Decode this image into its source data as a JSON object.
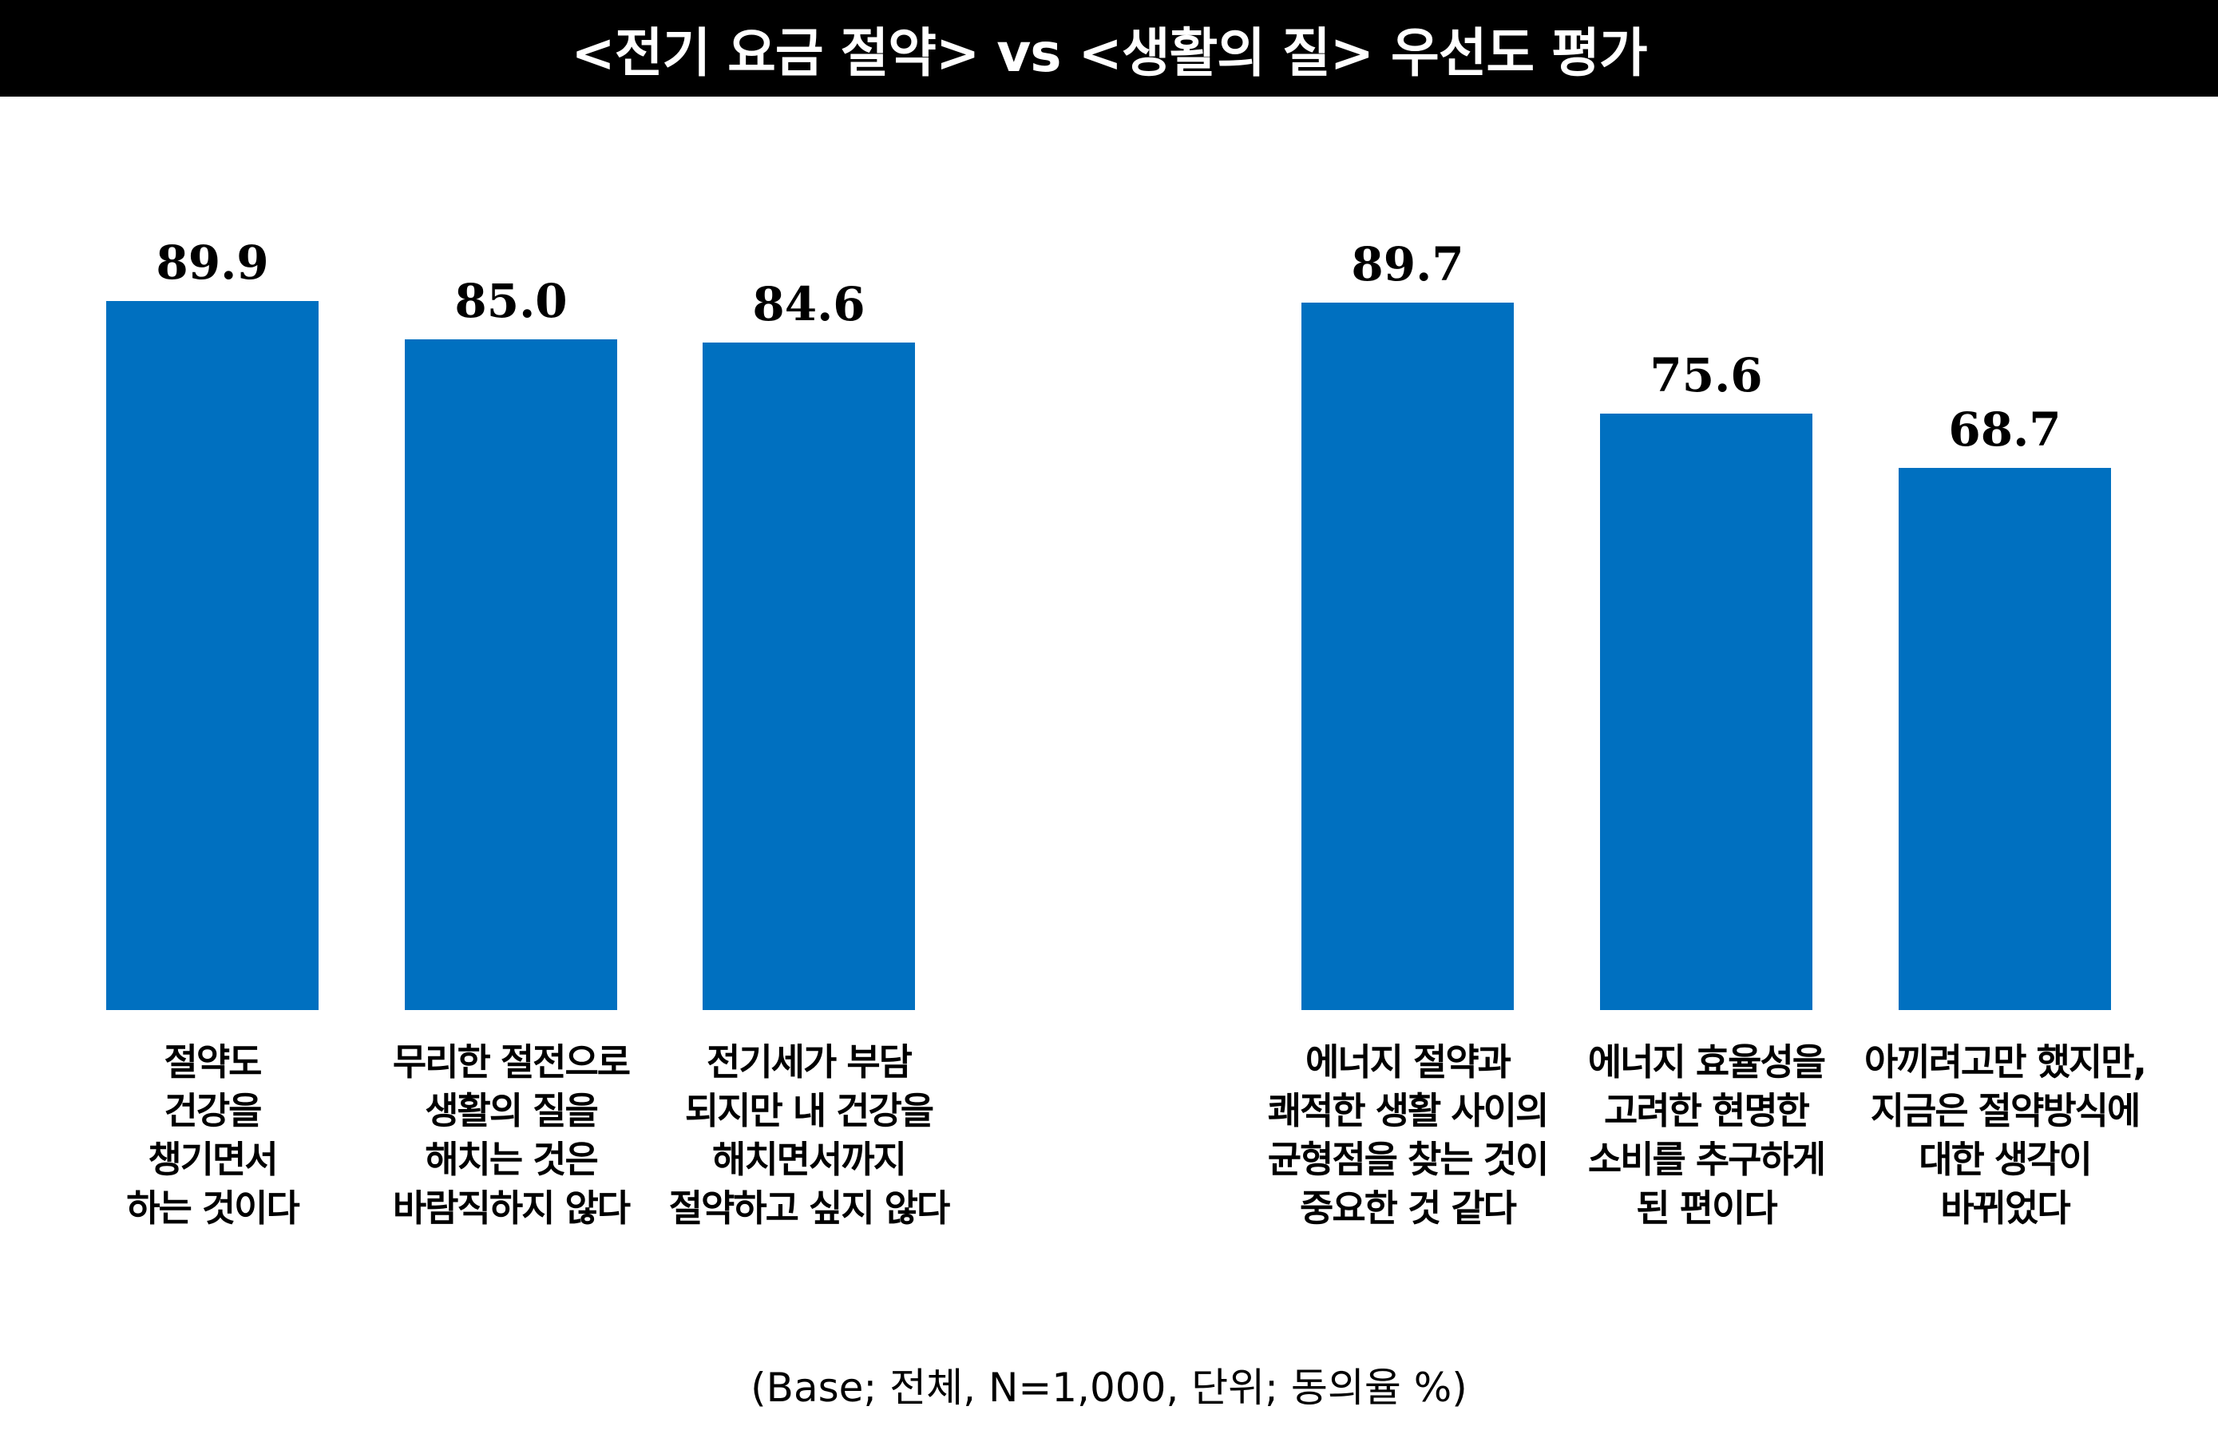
{
  "chart_data": {
    "type": "bar",
    "title": "<전기 요금 절약> vs <생활의 질> 우선도 평가",
    "groups": [
      {
        "categories": [
          [
            "절약도",
            "건강을",
            "챙기면서",
            "하는 것이다"
          ],
          [
            "무리한 절전으로",
            "생활의 질을",
            "해치는 것은",
            "바람직하지 않다"
          ],
          [
            "전기세가 부담",
            "되지만 내 건강을",
            "해치면서까지",
            "절약하고 싶지 않다"
          ]
        ],
        "values": [
          89.9,
          85.0,
          84.6
        ]
      },
      {
        "categories": [
          [
            "에너지 절약과",
            "쾌적한 생활 사이의",
            "균형점을 찾는 것이",
            "중요한 것 같다"
          ],
          [
            "에너지 효율성을",
            "고려한 현명한",
            "소비를 추구하게",
            "된 편이다"
          ],
          [
            "아끼려고만 했지만,",
            "지금은 절약방식에",
            "대한 생각이",
            "바뀌었다"
          ]
        ],
        "values": [
          89.7,
          75.6,
          68.7
        ]
      }
    ],
    "value_labels": [
      "89.9",
      "85.0",
      "84.6",
      "89.7",
      "75.6",
      "68.7"
    ],
    "ylim": [
      0,
      100
    ],
    "grid": false,
    "legend": "none",
    "note": "(Base; 전체, N=1,000, 단위; 동의율 %)",
    "bar_color": "#0070C0"
  }
}
